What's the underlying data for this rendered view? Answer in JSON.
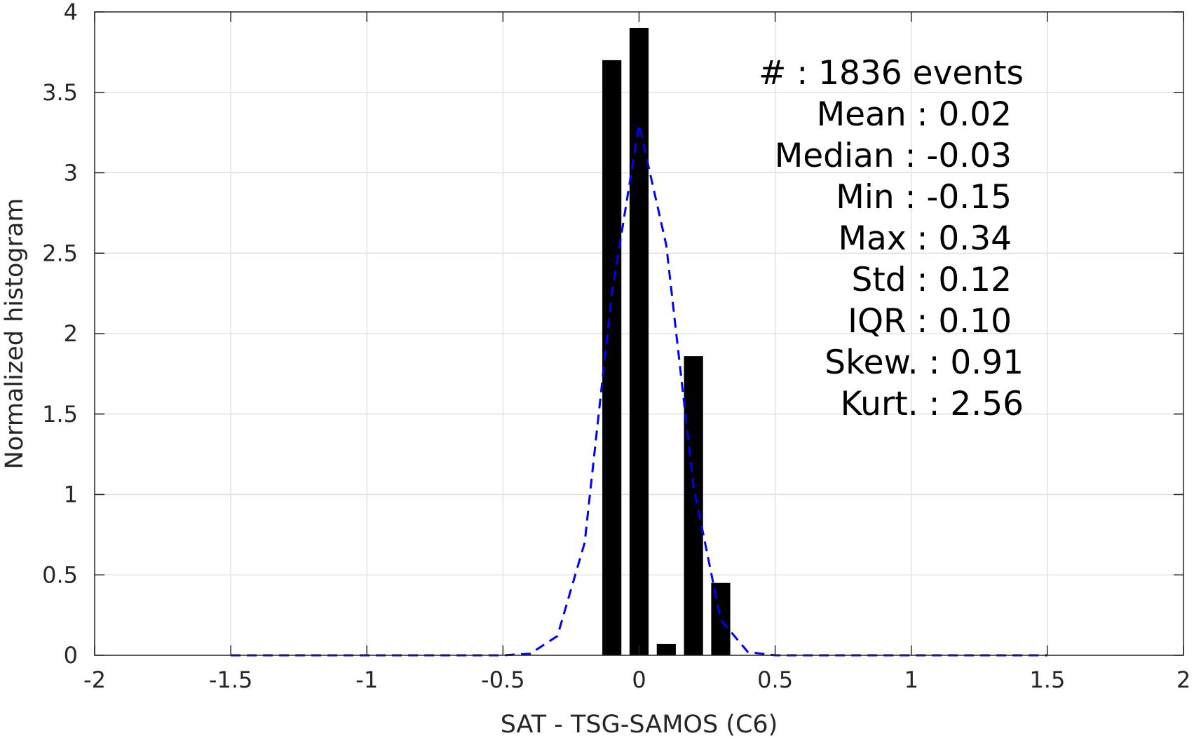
{
  "chart_data": {
    "type": "bar",
    "xlabel": "SAT - TSG-SAMOS (C6)",
    "ylabel": "Normalized histogram",
    "xlim": [
      -2,
      2
    ],
    "ylim": [
      0,
      4
    ],
    "xticks": [
      "-2",
      "-1.5",
      "-1",
      "-0.5",
      "0",
      "0.5",
      "1",
      "1.5",
      "2"
    ],
    "yticks": [
      "0",
      "0.5",
      "1",
      "1.5",
      "2",
      "2.5",
      "3",
      "3.5",
      "4"
    ],
    "grid": true,
    "bar_color": "#000000",
    "bar_width": 0.07,
    "bars": [
      {
        "x": -0.1,
        "value": 3.7
      },
      {
        "x": 0.0,
        "value": 3.9
      },
      {
        "x": 0.1,
        "value": 0.07
      },
      {
        "x": 0.2,
        "value": 1.86
      },
      {
        "x": 0.3,
        "value": 0.45
      }
    ],
    "fit_curve": {
      "style": "dashed",
      "color": "#0000ff",
      "x": [
        -1.5,
        -0.5,
        -0.4,
        -0.3,
        -0.2,
        -0.1,
        0.0,
        0.1,
        0.2,
        0.3,
        0.4,
        0.5,
        1.5
      ],
      "y": [
        0.0,
        0.0,
        0.01,
        0.12,
        0.7,
        2.25,
        3.3,
        2.55,
        1.05,
        0.22,
        0.02,
        0.0,
        0.0
      ]
    },
    "stats": [
      "#  : 1836 events",
      "Mean : 0.02",
      "Median : -0.03",
      "Min : -0.15",
      "Max : 0.34",
      "Std : 0.12",
      "IQR : 0.10",
      "Skew. : 0.91",
      "Kurt. : 2.56"
    ]
  }
}
